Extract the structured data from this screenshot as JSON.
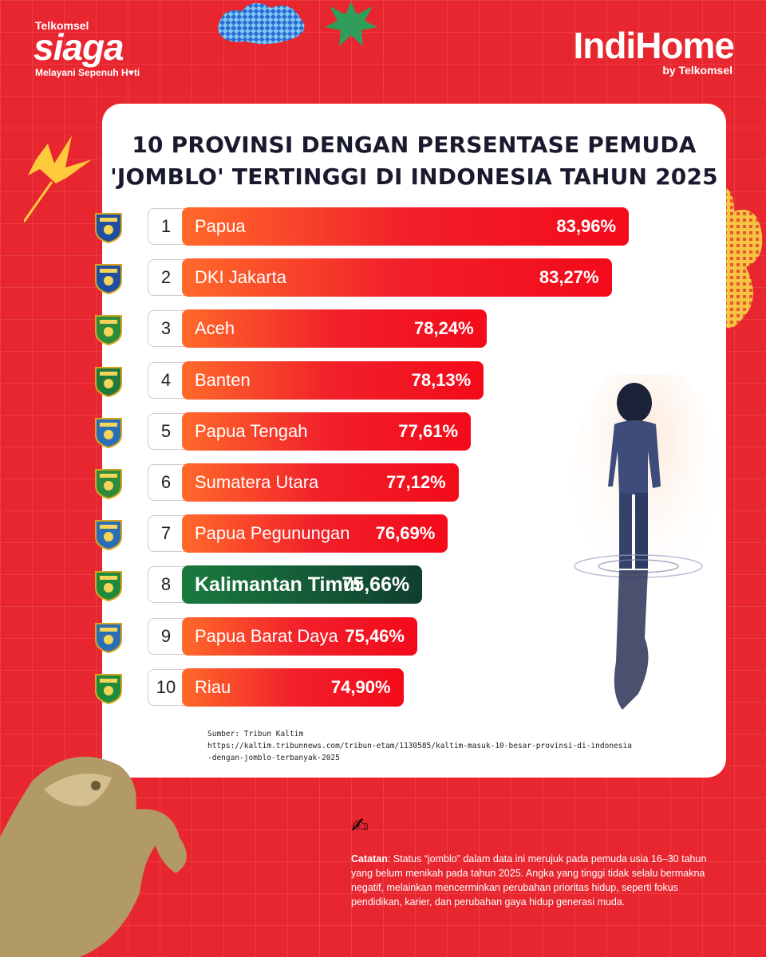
{
  "brand": {
    "telkomsel_small": "Telkomsel",
    "siaga": "siaga",
    "tagline": "Melayani Sepenuh H♥ti",
    "indihome": "IndiHome",
    "indihome_sub": "by Telkomsel"
  },
  "title_line1": "10 PROVINSI DENGAN PERSENTASE PEMUDA",
  "title_line2": "'JOMBLO' TERTINGGI DI INDONESIA TAHUN 2025",
  "colors": {
    "background": "#e8262f",
    "bar_red": "#f1202a",
    "bar_orange": "#ff6a2a",
    "highlight_green": "#145a38",
    "title": "#1a1a2e"
  },
  "chart_data": {
    "type": "bar",
    "orientation": "horizontal",
    "title": "10 PROVINSI DENGAN PERSENTASE PEMUDA 'JOMBLO' TERTINGGI DI INDONESIA TAHUN 2025",
    "unit": "%",
    "highlight_rank": 8,
    "items": [
      {
        "rank": "1",
        "province": "Papua",
        "value": 83.96,
        "label": "83,96%",
        "logo_color": "#1f4fa0"
      },
      {
        "rank": "2",
        "province": "DKI Jakarta",
        "value": 83.27,
        "label": "83,27%",
        "logo_color": "#1f4fa0"
      },
      {
        "rank": "3",
        "province": "Aceh",
        "value": 78.24,
        "label": "78,24%",
        "logo_color": "#2e8b3a"
      },
      {
        "rank": "4",
        "province": "Banten",
        "value": 78.13,
        "label": "78,13%",
        "logo_color": "#1f7a3a"
      },
      {
        "rank": "5",
        "province": "Papua Tengah",
        "value": 77.61,
        "label": "77,61%",
        "logo_color": "#2a6fb5"
      },
      {
        "rank": "6",
        "province": "Sumatera Utara",
        "value": 77.12,
        "label": "77,12%",
        "logo_color": "#2e8b3a"
      },
      {
        "rank": "7",
        "province": "Papua Pegunungan",
        "value": 76.69,
        "label": "76,69%",
        "logo_color": "#2a6fb5"
      },
      {
        "rank": "8",
        "province": "Kalimantan Timur",
        "value": 75.66,
        "label": "75,66%",
        "logo_color": "#1f8a3a"
      },
      {
        "rank": "9",
        "province": "Papua Barat Daya",
        "value": 75.46,
        "label": "75,46%",
        "logo_color": "#2a6fb5"
      },
      {
        "rank": "10",
        "province": "Riau",
        "value": 74.9,
        "label": "74,90%",
        "logo_color": "#1f8a3a"
      }
    ]
  },
  "source": {
    "line1": "Sumber: Tribun Kaltim",
    "line2": "https://kaltim.tribunnews.com/tribun-etam/1130585/kaltim-masuk-10-besar-provinsi-di-indonesia",
    "line3": "-dengan-jomblo-terbanyak-2025"
  },
  "note": {
    "icon": "✍",
    "label": "Catatan",
    "text": ": Status “jomblo” dalam data ini merujuk pada pemuda usia 16–30 tahun yang belum menikah pada tahun 2025. Angka yang tinggi tidak selalu bermakna negatif, melainkan mencerminkan perubahan prioritas hidup, seperti fokus pendidikan, karier,  dan perubahan gaya hidup generasi muda."
  }
}
